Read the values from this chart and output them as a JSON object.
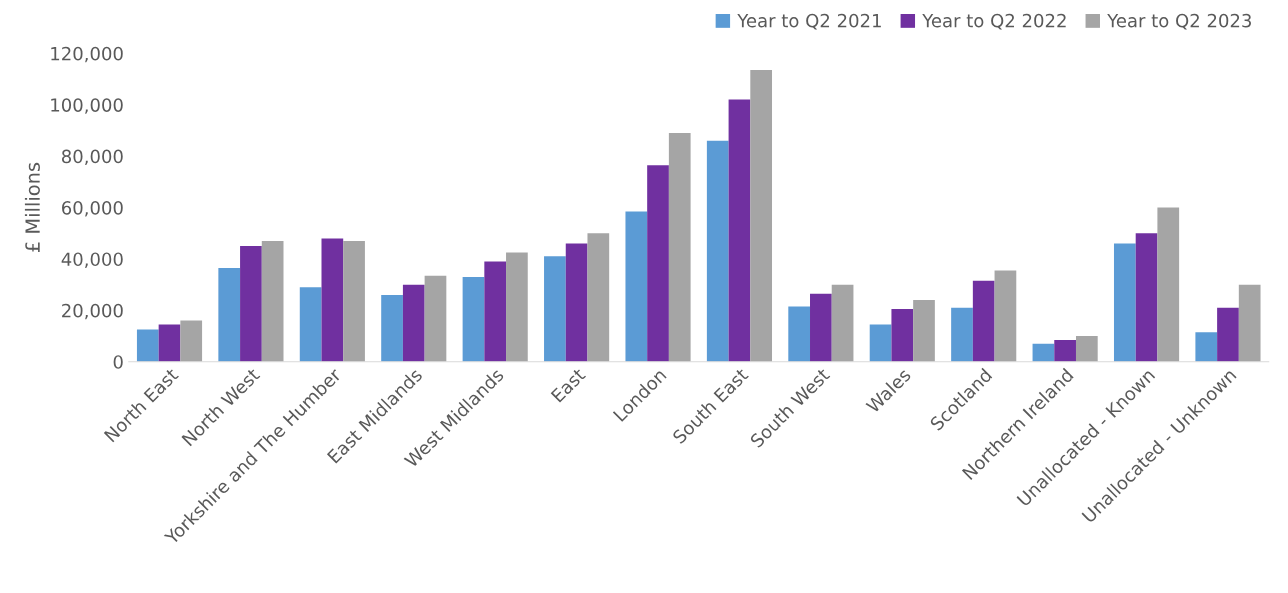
{
  "chart_data": {
    "type": "bar",
    "ylabel": "£ Millions",
    "categories": [
      "North East",
      "North West",
      "Yorkshire and The Humber",
      "East Midlands",
      "West Midlands",
      "East",
      "London",
      "South East",
      "South West",
      "Wales",
      "Scotland",
      "Northern Ireland",
      "Unallocated - Known",
      "Unallocated - Unknown"
    ],
    "series": [
      {
        "name": "Year to Q2 2021",
        "color": "#5b9bd5",
        "values": [
          12500,
          36500,
          29000,
          26000,
          33000,
          41000,
          58500,
          86000,
          21500,
          14500,
          21000,
          7000,
          46000,
          11500
        ]
      },
      {
        "name": "Year to Q2 2022",
        "color": "#7030a0",
        "values": [
          14500,
          45000,
          48000,
          30000,
          39000,
          46000,
          76500,
          102000,
          26500,
          20500,
          31500,
          8500,
          50000,
          21000
        ]
      },
      {
        "name": "Year to Q2 2023",
        "color": "#a5a5a5",
        "values": [
          16000,
          47000,
          47000,
          33500,
          42500,
          50000,
          89000,
          113500,
          30000,
          24000,
          35500,
          10000,
          60000,
          30000
        ]
      }
    ],
    "ylim": [
      0,
      120000
    ],
    "yticks": [
      {
        "value": 0,
        "label": "0"
      },
      {
        "value": 20000,
        "label": "20,000"
      },
      {
        "value": 40000,
        "label": "40,000"
      },
      {
        "value": 60000,
        "label": "60,000"
      },
      {
        "value": 80000,
        "label": "80,000"
      },
      {
        "value": 100000,
        "label": "100,000"
      },
      {
        "value": 120000,
        "label": "120,000"
      }
    ],
    "grid": false,
    "legend": "top right"
  }
}
